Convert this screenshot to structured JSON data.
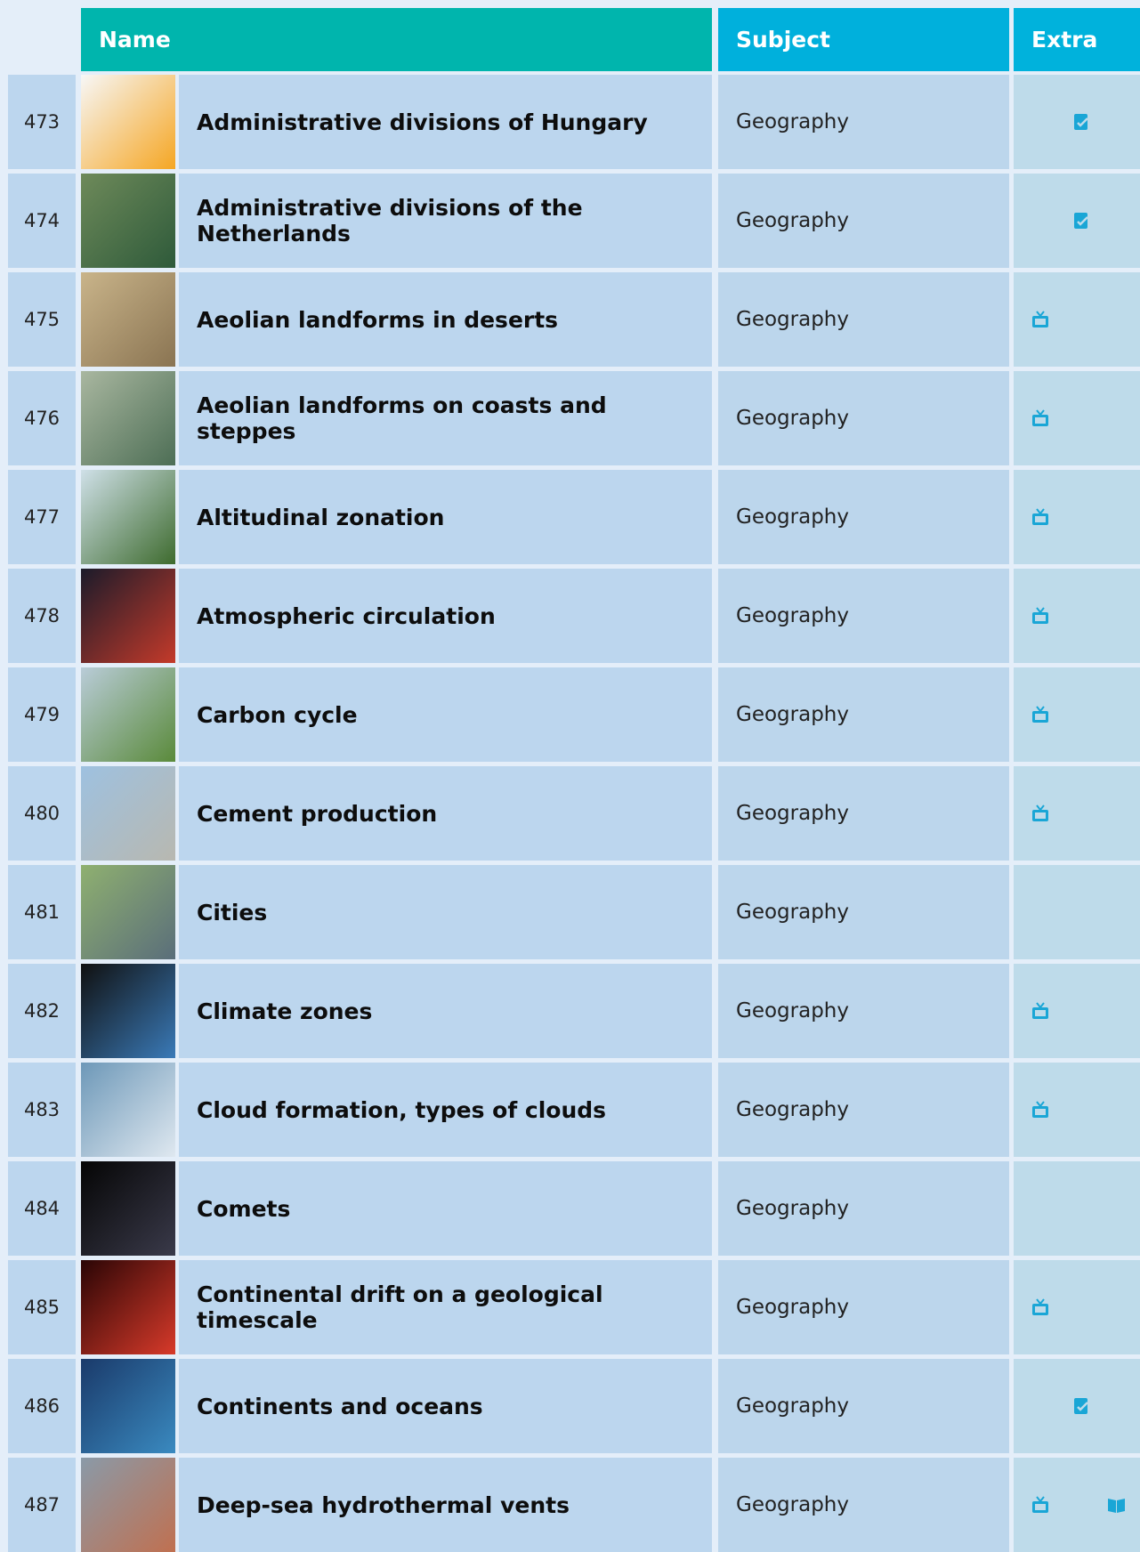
{
  "header": {
    "name": "Name",
    "subject": "Subject",
    "extra": "Extra"
  },
  "rows": [
    {
      "number": 473,
      "name": "Administrative divisions of Hungary",
      "subject": "Geography"
    },
    {
      "number": 474,
      "name": "Administrative divisions of the Netherlands",
      "subject": "Geography"
    },
    {
      "number": 475,
      "name": "Aeolian landforms in deserts",
      "subject": "Geography"
    },
    {
      "number": 476,
      "name": "Aeolian landforms on coasts and steppes",
      "subject": "Geography"
    },
    {
      "number": 477,
      "name": "Altitudinal zonation",
      "subject": "Geography"
    },
    {
      "number": 478,
      "name": "Atmospheric circulation",
      "subject": "Geography"
    },
    {
      "number": 479,
      "name": "Carbon cycle",
      "subject": "Geography"
    },
    {
      "number": 480,
      "name": "Cement production",
      "subject": "Geography"
    },
    {
      "number": 481,
      "name": "Cities",
      "subject": "Geography"
    },
    {
      "number": 482,
      "name": "Climate zones",
      "subject": "Geography"
    },
    {
      "number": 483,
      "name": "Cloud formation, types of clouds",
      "subject": "Geography"
    },
    {
      "number": 484,
      "name": "Comets",
      "subject": "Geography"
    },
    {
      "number": 485,
      "name": "Continental drift on a geological timescale",
      "subject": "Geography"
    },
    {
      "number": 486,
      "name": "Continents and oceans",
      "subject": "Geography"
    },
    {
      "number": 487,
      "name": "Deep-sea hydrothermal vents",
      "subject": "Geography"
    }
  ]
}
